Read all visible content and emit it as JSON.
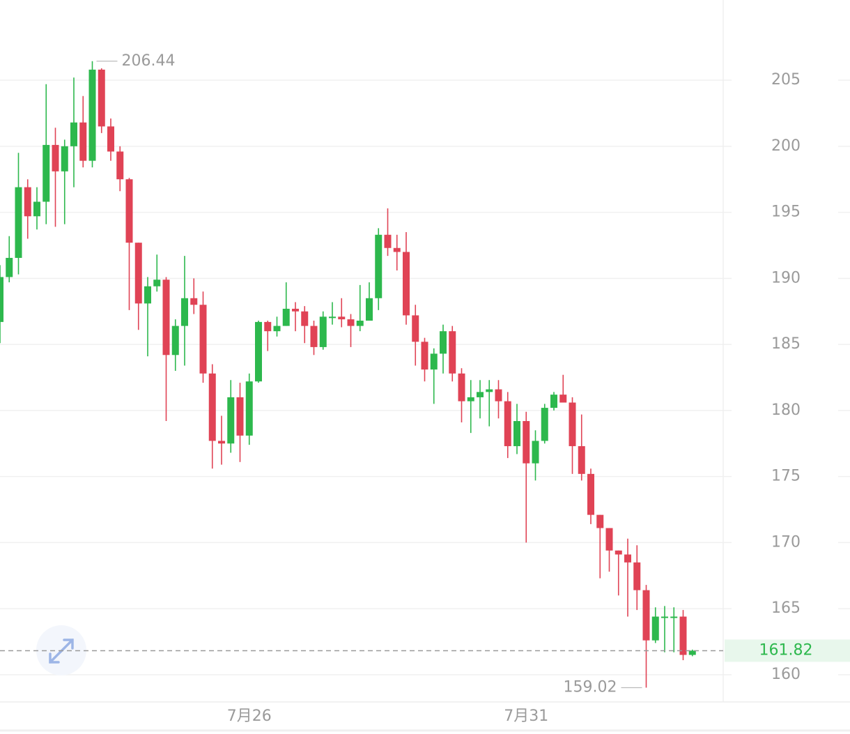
{
  "chart_data": {
    "type": "candlestick",
    "categories": [
      null,
      null,
      null,
      null,
      null,
      null,
      null,
      null,
      null,
      null,
      null,
      null,
      null,
      null,
      null,
      null,
      null,
      null,
      null,
      null,
      null,
      null,
      null,
      null,
      null,
      null,
      null,
      "7月26",
      null,
      null,
      null,
      null,
      null,
      null,
      null,
      null,
      null,
      null,
      null,
      null,
      null,
      null,
      null,
      null,
      null,
      null,
      null,
      null,
      null,
      null,
      null,
      null,
      null,
      null,
      null,
      null,
      null,
      "7月31",
      null,
      null,
      null,
      null,
      null,
      null,
      null,
      null,
      null,
      null,
      null,
      null,
      null,
      null,
      null,
      null,
      null,
      null
    ],
    "open": [
      186.7,
      190.1,
      191.55,
      196.9,
      194.7,
      195.8,
      200.1,
      198.1,
      200.0,
      201.8,
      198.9,
      205.8,
      201.5,
      199.6,
      197.5,
      192.7,
      188.1,
      189.4,
      189.9,
      184.2,
      186.4,
      188.5,
      188.0,
      182.8,
      177.7,
      177.5,
      181.0,
      178.1,
      182.2,
      186.7,
      186.0,
      186.4,
      187.7,
      187.5,
      186.4,
      184.8,
      187.0,
      187.1,
      186.9,
      186.4,
      186.8,
      188.5,
      193.3,
      192.3,
      192.0,
      187.2,
      185.2,
      183.1,
      184.3,
      186.0,
      182.8,
      180.7,
      181.0,
      181.4,
      181.6,
      180.7,
      177.3,
      179.2,
      176.0,
      177.7,
      180.2,
      181.2,
      180.6,
      177.3,
      175.2,
      172.1,
      171.1,
      169.4,
      169.1,
      168.5,
      166.4,
      162.6,
      164.3,
      164.3,
      164.4,
      161.5
    ],
    "high": [
      191.0,
      193.2,
      199.5,
      197.5,
      196.9,
      204.7,
      201.4,
      200.5,
      205.2,
      203.8,
      206.44,
      205.9,
      202.1,
      200.0,
      197.6,
      192.7,
      190.1,
      191.8,
      190.1,
      186.9,
      191.7,
      190.0,
      189.0,
      183.5,
      179.6,
      182.3,
      182.1,
      182.8,
      186.8,
      186.8,
      187.1,
      189.7,
      188.2,
      187.9,
      186.8,
      187.5,
      188.2,
      188.5,
      187.3,
      189.5,
      189.7,
      193.8,
      195.3,
      193.3,
      193.5,
      188.0,
      185.5,
      184.7,
      186.5,
      186.4,
      183.2,
      182.3,
      182.3,
      182.3,
      182.3,
      181.4,
      180.5,
      179.9,
      178.5,
      180.5,
      181.4,
      182.7,
      181.0,
      179.7,
      175.6,
      172.1,
      171.1,
      169.4,
      170.3,
      169.8,
      166.8,
      165.1,
      165.2,
      165.1,
      164.9,
      161.9
    ],
    "low": [
      185.1,
      189.7,
      190.3,
      193.0,
      193.7,
      194.1,
      193.9,
      194.1,
      196.9,
      198.4,
      198.4,
      201.0,
      198.9,
      196.6,
      187.6,
      186.1,
      184.1,
      189.0,
      179.2,
      183.0,
      183.4,
      187.3,
      182.1,
      175.6,
      175.9,
      176.8,
      176.1,
      177.4,
      182.1,
      184.5,
      185.6,
      186.4,
      186.0,
      185.1,
      184.2,
      184.6,
      186.5,
      186.3,
      184.8,
      186.0,
      186.8,
      187.6,
      191.7,
      190.6,
      186.5,
      183.4,
      182.2,
      180.5,
      182.8,
      182.2,
      179.1,
      178.3,
      179.4,
      178.8,
      179.4,
      176.4,
      176.7,
      170.0,
      174.7,
      177.5,
      180.0,
      180.6,
      175.2,
      174.7,
      171.4,
      167.3,
      167.8,
      166.0,
      164.4,
      164.9,
      159.02,
      162.4,
      161.7,
      161.7,
      161.1,
      161.4
    ],
    "close": [
      190.1,
      191.55,
      196.9,
      194.7,
      195.8,
      200.1,
      198.1,
      200.0,
      201.8,
      198.9,
      205.8,
      201.5,
      199.6,
      197.5,
      192.7,
      188.1,
      189.4,
      189.9,
      184.2,
      186.4,
      188.5,
      188.0,
      182.8,
      177.7,
      177.5,
      181.0,
      178.1,
      182.2,
      186.7,
      186.0,
      186.4,
      187.7,
      187.5,
      186.4,
      184.8,
      187.1,
      187.1,
      186.9,
      186.4,
      186.8,
      188.5,
      193.3,
      192.3,
      192.0,
      187.2,
      185.2,
      183.1,
      184.3,
      186.0,
      182.8,
      180.7,
      181.0,
      181.4,
      181.6,
      180.7,
      177.3,
      179.2,
      176.0,
      177.7,
      180.2,
      181.2,
      180.6,
      177.3,
      175.2,
      172.1,
      171.1,
      169.4,
      169.1,
      168.5,
      166.4,
      162.6,
      164.4,
      164.4,
      164.4,
      161.5,
      161.82
    ],
    "up_color": "#2db84d",
    "down_color": "#e04355",
    "ylim": [
      157.94,
      211.07
    ],
    "yticks": [
      160,
      165,
      170,
      175,
      180,
      185,
      190,
      195,
      200,
      205
    ],
    "grid": true,
    "high_marker": 206.44,
    "low_marker": 159.02,
    "last_price": 161.82
  }
}
